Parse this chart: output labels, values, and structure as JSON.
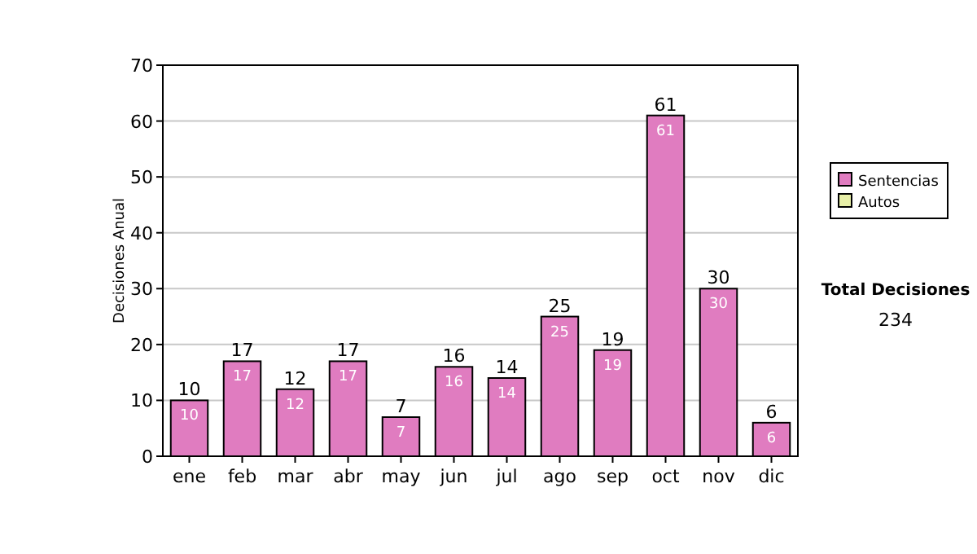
{
  "chart_data": {
    "type": "bar",
    "ylabel": "Decisiones Anual",
    "categories": [
      "ene",
      "feb",
      "mar",
      "abr",
      "may",
      "jun",
      "jul",
      "ago",
      "sep",
      "oct",
      "nov",
      "dic"
    ],
    "series": [
      {
        "name": "Sentencias",
        "color": "#e07cc0",
        "values": [
          10,
          17,
          12,
          17,
          7,
          16,
          14,
          25,
          19,
          61,
          30,
          6
        ],
        "value_labels": [
          "10",
          "17",
          "12",
          "17",
          "7",
          "16",
          "14",
          "25",
          "19",
          "61",
          "30",
          "6"
        ]
      },
      {
        "name": "Autos",
        "color": "#e8f0a8",
        "values": [
          0,
          0,
          0,
          0,
          0,
          0,
          0,
          0,
          0,
          0,
          0,
          0
        ],
        "value_labels": [
          null,
          null,
          null,
          null,
          null,
          null,
          null,
          null,
          null,
          null,
          null,
          null
        ]
      }
    ],
    "stacked": true,
    "totals": [
      "10",
      "17",
      "12",
      "17",
      "7",
      "16",
      "14",
      "25",
      "19",
      "61",
      "30",
      "6"
    ],
    "ylim": [
      0,
      70
    ],
    "yticks": [
      0,
      10,
      20,
      30,
      40,
      50,
      60,
      70
    ],
    "grid": "y",
    "legend": "right",
    "annotations": [
      "Total Decisiones",
      "234"
    ]
  }
}
